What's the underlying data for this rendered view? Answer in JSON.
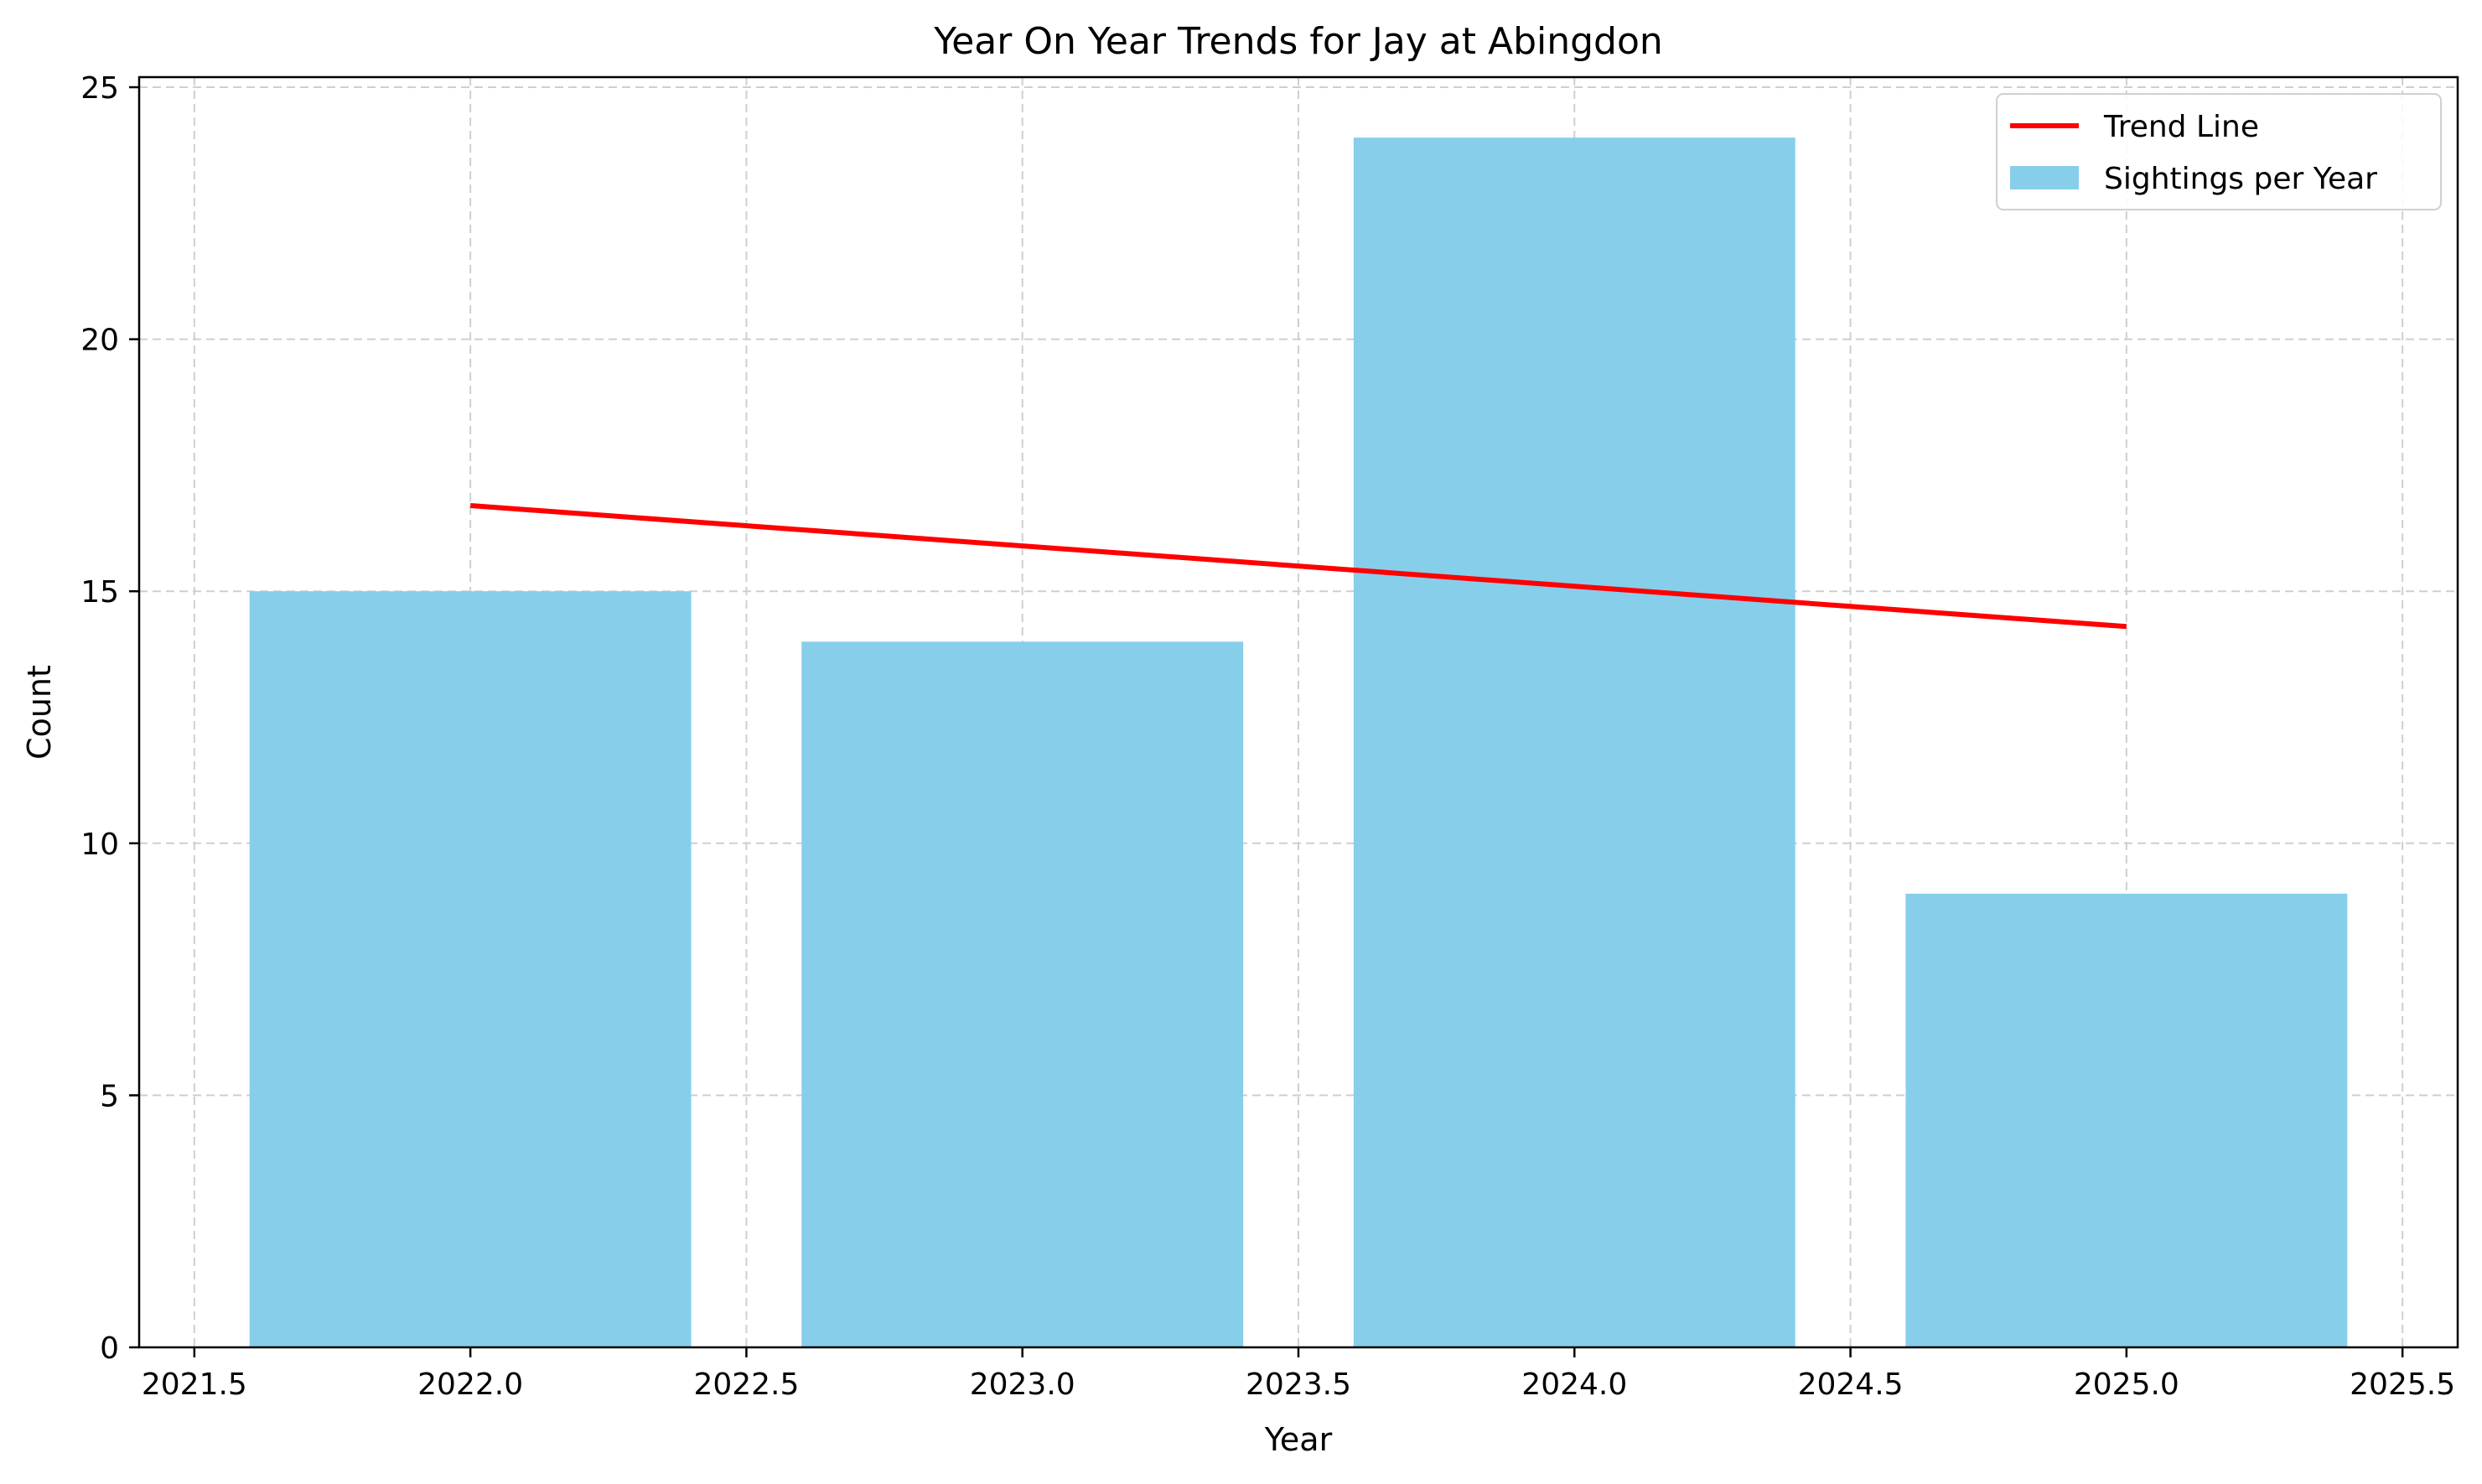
{
  "chart_data": {
    "type": "bar",
    "title": "Year On Year Trends for Jay at Abingdon",
    "xlabel": "Year",
    "ylabel": "Count",
    "x": [
      2022,
      2023,
      2024,
      2025
    ],
    "bar_width": 0.8,
    "series": [
      {
        "name": "Sightings per Year",
        "type": "bar",
        "color": "#87CEEB",
        "values": [
          15,
          14,
          24,
          9
        ]
      },
      {
        "name": "Trend Line",
        "type": "line",
        "color": "#FF0000",
        "points": [
          [
            2022,
            16.7
          ],
          [
            2025,
            14.3
          ]
        ]
      }
    ],
    "xlim": [
      2021.4,
      2025.6
    ],
    "ylim": [
      0,
      25.2
    ],
    "xticks": [
      2021.5,
      2022.0,
      2022.5,
      2023.0,
      2023.5,
      2024.0,
      2024.5,
      2025.0,
      2025.5
    ],
    "xtick_labels": [
      "2021.5",
      "2022.0",
      "2022.5",
      "2023.0",
      "2023.5",
      "2024.0",
      "2024.5",
      "2025.0",
      "2025.5"
    ],
    "yticks": [
      0,
      5,
      10,
      15,
      20,
      25
    ],
    "ytick_labels": [
      "0",
      "5",
      "10",
      "15",
      "20",
      "25"
    ],
    "grid": true,
    "grid_style": "dashed",
    "legend_position": "top-right",
    "legend": [
      {
        "label": "Trend Line",
        "kind": "line",
        "color": "#FF0000"
      },
      {
        "label": "Sightings per Year",
        "kind": "patch",
        "color": "#87CEEB"
      }
    ]
  }
}
